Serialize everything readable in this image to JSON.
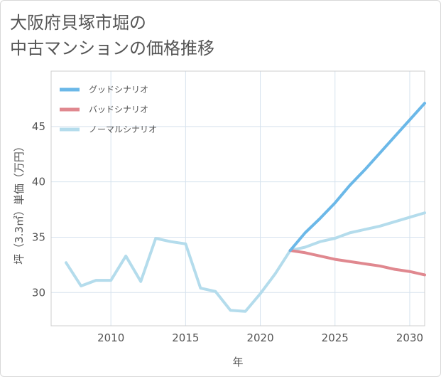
{
  "title_line1": "大阪府貝塚市堀の",
  "title_line2": "中古マンションの価格推移",
  "chart_data": {
    "type": "line",
    "xlabel": "年",
    "ylabel": "坪（3.3㎡）単価（万円）",
    "xlim": [
      2006,
      2031
    ],
    "ylim": [
      27,
      50
    ],
    "xticks": [
      2010,
      2015,
      2020,
      2025,
      2030
    ],
    "yticks": [
      30,
      35,
      40,
      45
    ],
    "grid": true,
    "legend_position": "top-left",
    "colors": {
      "good": "#6bb8e8",
      "bad": "#e0888f",
      "normal": "#b4dcec"
    },
    "series": [
      {
        "name": "グッドシナリオ",
        "key": "good",
        "x": [
          2022,
          2023,
          2024,
          2025,
          2026,
          2027,
          2028,
          2029,
          2030,
          2031
        ],
        "y": [
          33.8,
          35.4,
          36.7,
          38.1,
          39.7,
          41.1,
          42.6,
          44.1,
          45.6,
          47.1
        ]
      },
      {
        "name": "バッドシナリオ",
        "key": "bad",
        "x": [
          2022,
          2023,
          2024,
          2025,
          2026,
          2027,
          2028,
          2029,
          2030,
          2031
        ],
        "y": [
          33.8,
          33.6,
          33.3,
          33.0,
          32.8,
          32.6,
          32.4,
          32.1,
          31.9,
          31.6
        ]
      },
      {
        "name": "ノーマルシナリオ",
        "key": "normal",
        "x": [
          2007,
          2008,
          2009,
          2010,
          2011,
          2012,
          2013,
          2014,
          2015,
          2016,
          2017,
          2018,
          2019,
          2020,
          2021,
          2022,
          2023,
          2024,
          2025,
          2026,
          2027,
          2028,
          2029,
          2030,
          2031
        ],
        "y": [
          32.7,
          30.6,
          31.1,
          31.1,
          33.3,
          31.0,
          34.9,
          34.6,
          34.4,
          30.4,
          30.1,
          28.4,
          28.3,
          29.9,
          31.7,
          33.8,
          34.1,
          34.6,
          34.9,
          35.4,
          35.7,
          36.0,
          36.4,
          36.8,
          37.2
        ]
      }
    ]
  }
}
